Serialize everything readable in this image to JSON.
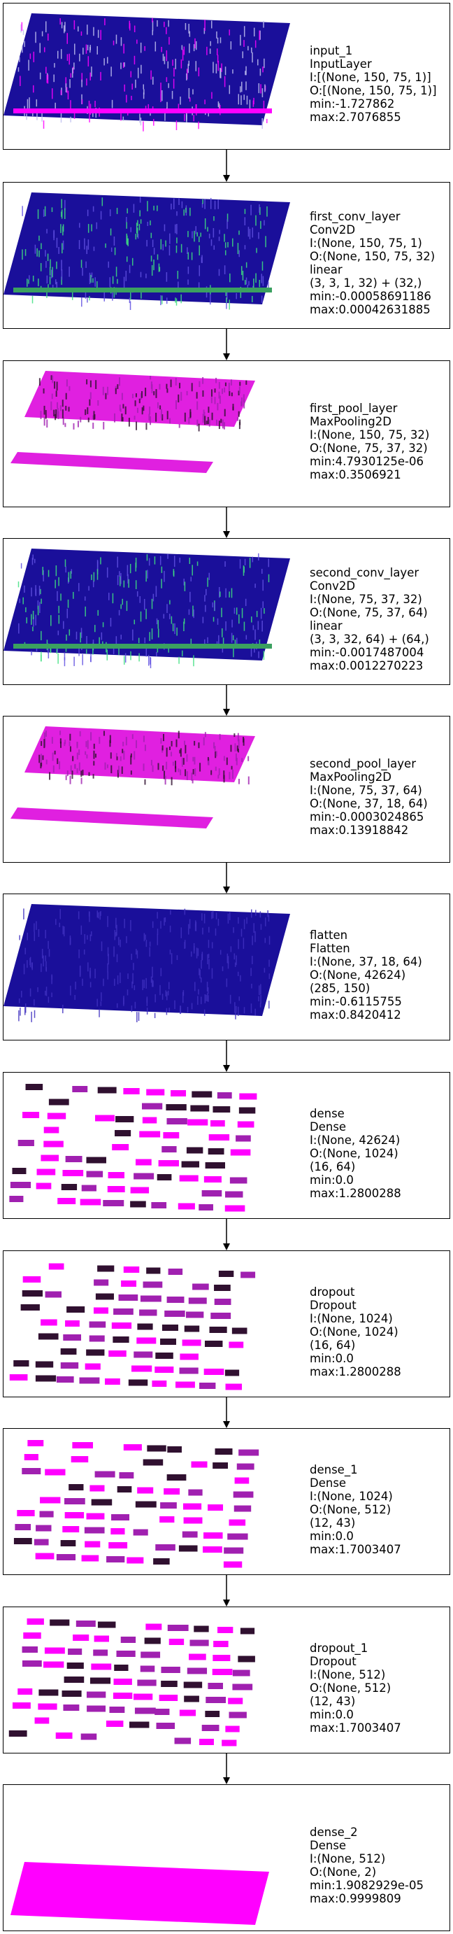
{
  "layers": [
    {
      "name": "input_1",
      "type": "InputLayer",
      "details": [
        "I:[(None, 150, 75, 1)]",
        "O:[(None, 150, 75, 1)]",
        "min:-1.727862",
        "max:2.7076855"
      ],
      "palette": "input"
    },
    {
      "name": "first_conv_layer",
      "type": "Conv2D",
      "details": [
        "I:(None, 150, 75, 1)",
        "O:(None, 150, 75, 32)",
        "linear",
        "(3, 3, 1, 32) + (32,)",
        "min:-0.00058691186",
        "max:0.00042631885"
      ],
      "palette": "conv"
    },
    {
      "name": "first_pool_layer",
      "type": "MaxPooling2D",
      "details": [
        "I:(None, 150, 75, 32)",
        "O:(None, 75, 37, 32)",
        "min:4.7930125e-06",
        "max:0.3506921"
      ],
      "palette": "pool"
    },
    {
      "name": "second_conv_layer",
      "type": "Conv2D",
      "details": [
        "I:(None, 75, 37, 32)",
        "O:(None, 75, 37, 64)",
        "linear",
        "(3, 3, 32, 64) + (64,)",
        "min:-0.0017487004",
        "max:0.0012270223"
      ],
      "palette": "conv"
    },
    {
      "name": "second_pool_layer",
      "type": "MaxPooling2D",
      "details": [
        "I:(None, 75, 37, 64)",
        "O:(None, 37, 18, 64)",
        "min:-0.0003024865",
        "max:0.13918842"
      ],
      "palette": "pool"
    },
    {
      "name": "flatten",
      "type": "Flatten",
      "details": [
        "I:(None, 37, 18, 64)",
        "O:(None, 42624)",
        "(285, 150)",
        "min:-0.6115755",
        "max:0.8420412"
      ],
      "palette": "flatten"
    },
    {
      "name": "dense",
      "type": "Dense",
      "details": [
        "I:(None, 42624)",
        "O:(None, 1024)",
        "(16, 64)",
        "min:0.0",
        "max:1.2800288"
      ],
      "palette": "dense"
    },
    {
      "name": "dropout",
      "type": "Dropout",
      "details": [
        "I:(None, 1024)",
        "O:(None, 1024)",
        "(16, 64)",
        "min:0.0",
        "max:1.2800288"
      ],
      "palette": "dense"
    },
    {
      "name": "dense_1",
      "type": "Dense",
      "details": [
        "I:(None, 1024)",
        "O:(None, 512)",
        "(12, 43)",
        "min:0.0",
        "max:1.7003407"
      ],
      "palette": "dense"
    },
    {
      "name": "dropout_1",
      "type": "Dropout",
      "details": [
        "I:(None, 512)",
        "O:(None, 512)",
        "(12, 43)",
        "min:0.0",
        "max:1.7003407"
      ],
      "palette": "dense"
    },
    {
      "name": "dense_2",
      "type": "Dense",
      "details": [
        "I:(None, 512)",
        "O:(None, 2)",
        "min:1.9082929e-05",
        "max:0.9999809"
      ],
      "palette": "output"
    }
  ],
  "colors": {
    "border": "#000000",
    "base_blue": "#1a0f9a",
    "magenta": "#e020e0",
    "bright_magenta": "#ff00ff",
    "purple": "#a020b0",
    "green": "#40e080",
    "dark": "#301030"
  }
}
